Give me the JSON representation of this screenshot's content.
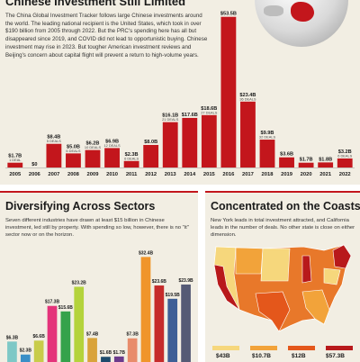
{
  "top": {
    "title": "Chinese Investment Still Limited",
    "intro": "The China Global Investment Tracker follows large Chinese investments around the world. The leading national recipient is the United States, which took in over $190 billion from 2005 through 2022. But the PRC's spending here has all but disappeared since 2019, and COVID did not lead to opportunistic buying. Chinese investment may rise in 2023. But tougher American investment reviews and Beijing's concern about capital flight will prevent a return to high-volume years."
  },
  "sectors": {
    "title": "Diversifying Across Sectors",
    "text": "Seven different industries have drawn at least $15 billion in Chinese investment, led still by property. With spending so low, however, there is no \"it\" sector now or on the horizon."
  },
  "coasts": {
    "title": "Concentrated on the Coasts",
    "text": "New York leads in total investment attracted, and California leads in the number of deals. No other state is close on either dimension.",
    "values": [
      "$43B",
      "$10.7B",
      "$12B",
      "$57.3B"
    ],
    "colors": [
      "#f6d77c",
      "#f2a33a",
      "#e4571b",
      "#b8191b"
    ]
  },
  "chart_data": [
    {
      "type": "bar",
      "categories": [
        "2005",
        "2006",
        "2007",
        "2008",
        "2009",
        "2010",
        "2011",
        "2012",
        "2013",
        "2014",
        "2015",
        "2016",
        "2017",
        "2018",
        "2019",
        "2020",
        "2021",
        "2022"
      ],
      "values": [
        1.7,
        0,
        8.4,
        5.0,
        6.2,
        6.9,
        2.3,
        8.0,
        16.1,
        17.6,
        18.6,
        53.5,
        23.4,
        9.9,
        3.6,
        1.7,
        1.8,
        3.2
      ],
      "value_labels": [
        "$1.7B",
        "$0",
        "$8.4B",
        "$5.0B",
        "$6.2B",
        "$6.9B",
        "$2.3B",
        "$8.0B",
        "$16.1B",
        "$17.6B",
        "$18.6B",
        "$53.5B",
        "$23.4B",
        "$9.9B",
        "$3.6B",
        "$1.7B",
        "$1.8B",
        "$3.2B"
      ],
      "deal_labels": [
        "1 DEAL",
        "",
        "5 DEALS",
        "6 DEALS",
        "10 DEALS",
        "12 DEALS",
        "6 DEALS",
        "",
        "21 DEALS",
        "",
        "27 DEALS",
        "",
        "36 DEALS",
        "32 DEALS",
        "",
        "",
        "",
        "6 DEALS"
      ],
      "color": "#c3161c",
      "ylim": [
        0,
        55
      ]
    },
    {
      "type": "bar",
      "values": [
        6.3,
        2.3,
        6.6,
        17.3,
        15.6,
        23.2,
        7.4,
        1.6,
        1.7,
        7.3,
        32.4,
        23.6,
        19.5,
        23.9
      ],
      "value_labels": [
        "$6.3B",
        "$2.3B",
        "$6.6B",
        "$17.3B",
        "$15.6B",
        "$23.2B",
        "$7.4B",
        "$1.6B",
        "$1.7B",
        "$7.3B",
        "$32.4B",
        "$23.6B",
        "$19.5B",
        "$23.9B"
      ],
      "deal_labels": [
        "",
        "",
        "",
        "",
        "",
        "",
        "",
        "",
        "",
        "",
        "",
        "",
        "",
        ""
      ],
      "colors": [
        "#7ec8c6",
        "#3a8fc7",
        "#c8cc4a",
        "#e4337a",
        "#35a24b",
        "#b4d33c",
        "#d9a33a",
        "#1d4a6c",
        "#6c3a8c",
        "#e88c6b",
        "#f0952a",
        "#c62b2b",
        "#3e5f96",
        "#555a75"
      ],
      "ylim": [
        0,
        35
      ]
    }
  ]
}
